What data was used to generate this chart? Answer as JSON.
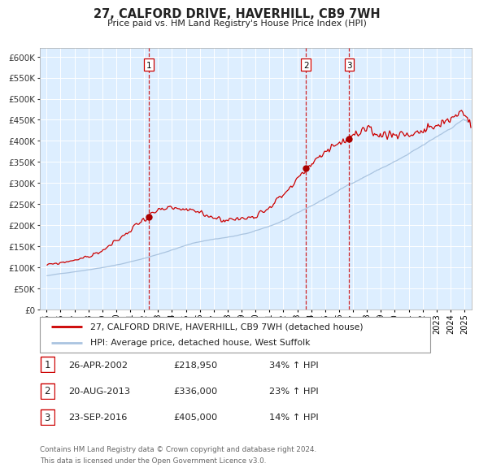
{
  "title": "27, CALFORD DRIVE, HAVERHILL, CB9 7WH",
  "subtitle": "Price paid vs. HM Land Registry's House Price Index (HPI)",
  "legend_line1": "27, CALFORD DRIVE, HAVERHILL, CB9 7WH (detached house)",
  "legend_line2": "HPI: Average price, detached house, West Suffolk",
  "transactions": [
    {
      "label": "1",
      "date": "26-APR-2002",
      "price": 218950,
      "price_str": "£218,950",
      "hpi_change": "34% ↑ HPI",
      "x_year": 2002.32
    },
    {
      "label": "2",
      "date": "20-AUG-2013",
      "price": 336000,
      "price_str": "£336,000",
      "hpi_change": "23% ↑ HPI",
      "x_year": 2013.63
    },
    {
      "label": "3",
      "date": "23-SEP-2016",
      "price": 405000,
      "price_str": "£405,000",
      "hpi_change": "14% ↑ HPI",
      "x_year": 2016.73
    }
  ],
  "hpi_color": "#aac4e0",
  "price_color": "#cc0000",
  "dot_color": "#aa0000",
  "vline_color": "#cc0000",
  "background_color": "#ddeeff",
  "grid_color": "#ffffff",
  "footnote1": "Contains HM Land Registry data © Crown copyright and database right 2024.",
  "footnote2": "This data is licensed under the Open Government Licence v3.0.",
  "ylim": [
    0,
    620000
  ],
  "yticks": [
    0,
    50000,
    100000,
    150000,
    200000,
    250000,
    300000,
    350000,
    400000,
    450000,
    500000,
    550000,
    600000
  ],
  "x_years": [
    1995,
    1996,
    1997,
    1998,
    1999,
    2000,
    2001,
    2002,
    2003,
    2004,
    2005,
    2006,
    2007,
    2008,
    2009,
    2010,
    2011,
    2012,
    2013,
    2014,
    2015,
    2016,
    2017,
    2018,
    2019,
    2020,
    2021,
    2022,
    2023,
    2024,
    2025
  ],
  "xlim_start": 1994.5,
  "xlim_end": 2025.5
}
